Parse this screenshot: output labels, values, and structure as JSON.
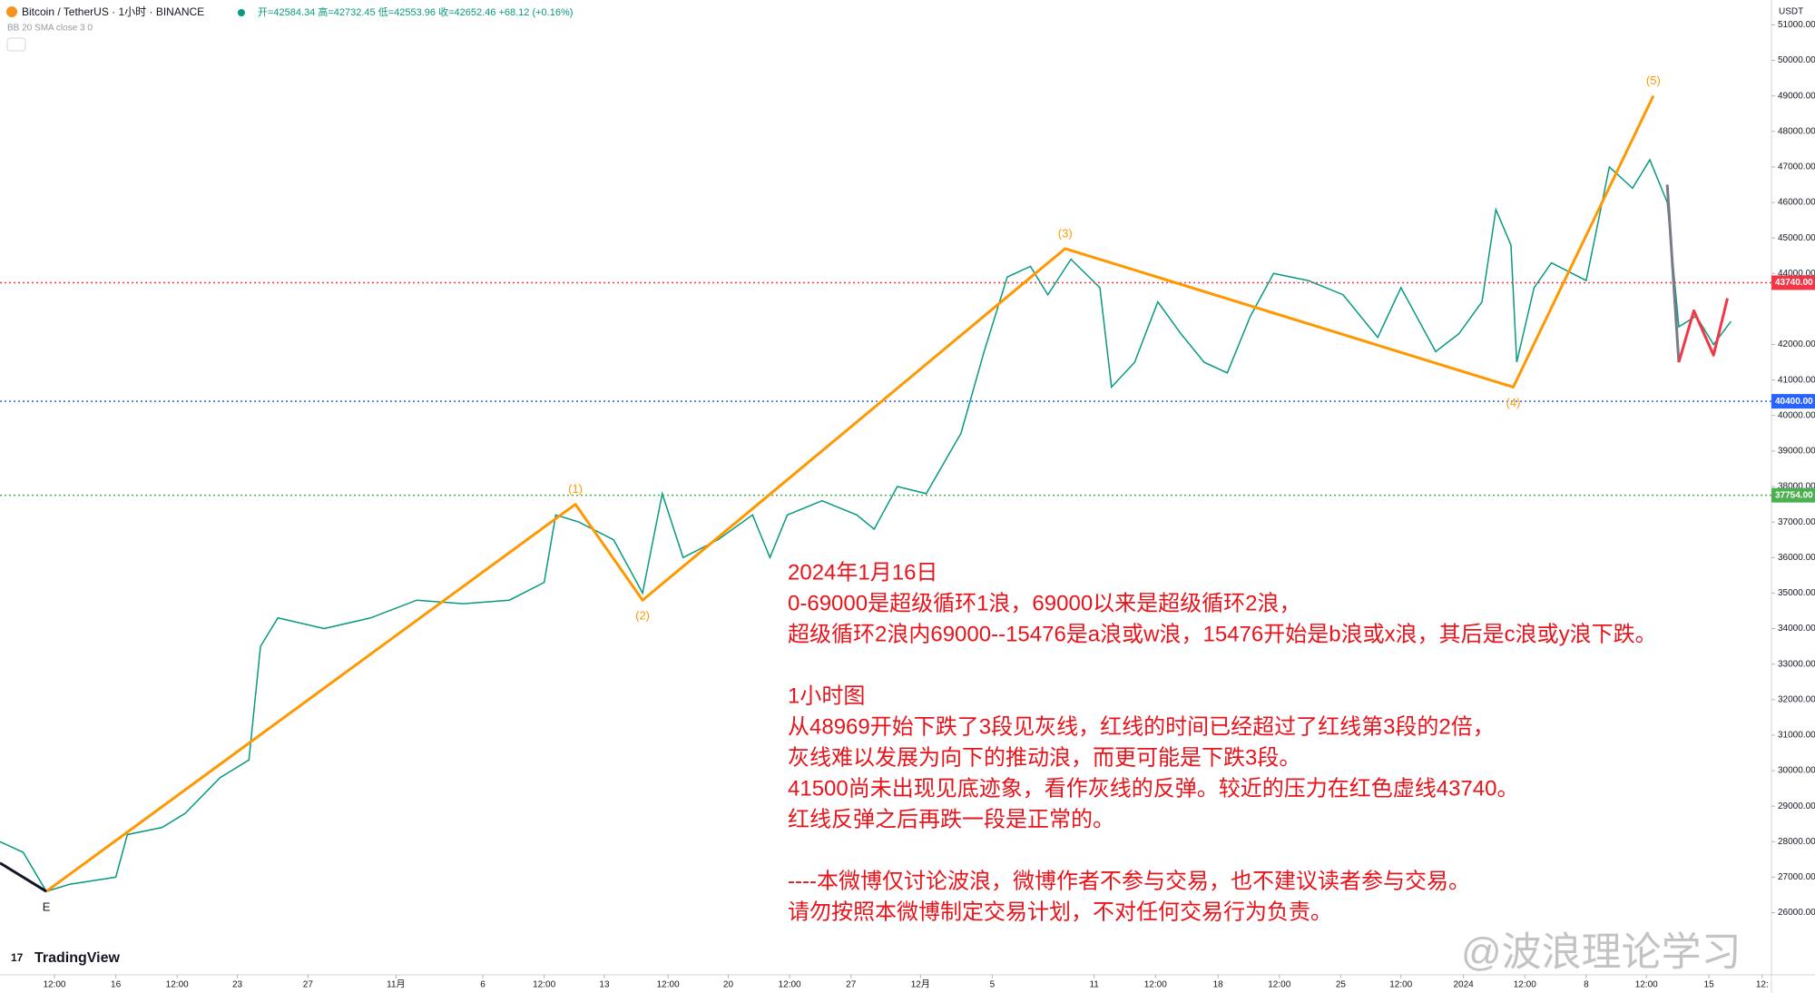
{
  "header": {
    "symbol": "Bitcoin / TetherUS · 1小时 · BINANCE",
    "ohlc": "开=42584.34 高=42732.45 低=42553.96 收=42652.46 +68.12 (+0.16%)",
    "indicator": "BB 20 SMA close 3 0",
    "logo": "TradingView",
    "watermark": "@波浪理论学习"
  },
  "chart_data": {
    "type": "line",
    "color": "#089981",
    "y_unit": "USDT",
    "x": [
      0,
      20,
      40,
      60,
      100,
      110,
      140,
      160,
      190,
      215,
      225,
      240,
      280,
      320,
      360,
      400,
      440,
      470,
      480,
      500,
      530,
      555,
      572,
      590,
      620,
      650,
      665,
      680,
      710,
      740,
      755,
      775,
      800,
      830,
      850,
      870,
      890,
      905,
      925,
      950,
      960,
      980,
      1000,
      1020,
      1040,
      1060,
      1080,
      1100,
      1130,
      1160,
      1190,
      1210,
      1240,
      1260,
      1280,
      1292,
      1305,
      1310,
      1325,
      1340,
      1370,
      1390,
      1410,
      1425,
      1440,
      1450,
      1465,
      1480,
      1495
    ],
    "values": [
      28000,
      27700,
      26600,
      26800,
      27000,
      28200,
      28400,
      28800,
      29800,
      30300,
      33500,
      34300,
      34000,
      34300,
      34800,
      34700,
      34800,
      35300,
      37200,
      37000,
      36500,
      35000,
      37800,
      36000,
      36500,
      37200,
      36000,
      37200,
      37600,
      37200,
      36800,
      38000,
      37800,
      39500,
      41800,
      43900,
      44200,
      43400,
      44400,
      43600,
      40800,
      41500,
      43200,
      42300,
      41500,
      41200,
      42800,
      44000,
      43800,
      43400,
      42200,
      43600,
      41800,
      42300,
      43200,
      45800,
      44800,
      41500,
      43600,
      44300,
      43800,
      47000,
      46400,
      47200,
      46000,
      42500,
      42800,
      42000,
      42650
    ],
    "xlim": [
      0,
      1530
    ],
    "ylim": [
      24250,
      51700
    ],
    "xticks": [
      {
        "value": 47,
        "label": "12:00"
      },
      {
        "value": 100,
        "label": "16"
      },
      {
        "value": 153,
        "label": "12:00"
      },
      {
        "value": 205,
        "label": "23"
      },
      {
        "value": 266,
        "label": "27"
      },
      {
        "value": 342,
        "label": "11月"
      },
      {
        "value": 417,
        "label": "6"
      },
      {
        "value": 470,
        "label": "12:00"
      },
      {
        "value": 522,
        "label": "13"
      },
      {
        "value": 577,
        "label": "12:00"
      },
      {
        "value": 629,
        "label": "20"
      },
      {
        "value": 682,
        "label": "12:00"
      },
      {
        "value": 735,
        "label": "27"
      },
      {
        "value": 795,
        "label": "12月"
      },
      {
        "value": 857,
        "label": "5"
      },
      {
        "value": 945,
        "label": "11"
      },
      {
        "value": 998,
        "label": "12:00"
      },
      {
        "value": 1052,
        "label": "18"
      },
      {
        "value": 1105,
        "label": "12:00"
      },
      {
        "value": 1158,
        "label": "25"
      },
      {
        "value": 1210,
        "label": "12:00"
      },
      {
        "value": 1264,
        "label": "2024"
      },
      {
        "value": 1317,
        "label": "12:00"
      },
      {
        "value": 1370,
        "label": "8"
      },
      {
        "value": 1422,
        "label": "12:00"
      },
      {
        "value": 1476,
        "label": "15"
      },
      {
        "value": 1522,
        "label": "12:"
      }
    ],
    "yticks": [
      {
        "value": 26000,
        "label": "26000.00"
      },
      {
        "value": 27000,
        "label": "27000.00"
      },
      {
        "value": 28000,
        "label": "28000.00"
      },
      {
        "value": 29000,
        "label": "29000.00"
      },
      {
        "value": 30000,
        "label": "30000.00"
      },
      {
        "value": 31000,
        "label": "31000.00"
      },
      {
        "value": 32000,
        "label": "32000.00"
      },
      {
        "value": 33000,
        "label": "33000.00"
      },
      {
        "value": 34000,
        "label": "34000.00"
      },
      {
        "value": 35000,
        "label": "35000.00"
      },
      {
        "value": 36000,
        "label": "36000.00"
      },
      {
        "value": 37000,
        "label": "37000.00"
      },
      {
        "value": 38000,
        "label": "38000.00"
      },
      {
        "value": 39000,
        "label": "39000.00"
      },
      {
        "value": 40000,
        "label": "40000.00"
      },
      {
        "value": 41000,
        "label": "41000.00"
      },
      {
        "value": 42000,
        "label": "42000.00"
      },
      {
        "value": 44000,
        "label": "44000.00"
      },
      {
        "value": 45000,
        "label": "45000.00"
      },
      {
        "value": 46000,
        "label": "46000.00"
      },
      {
        "value": 47000,
        "label": "47000.00"
      },
      {
        "value": 48000,
        "label": "48000.00"
      },
      {
        "value": 49000,
        "label": "49000.00"
      },
      {
        "value": 50000,
        "label": "50000.00"
      },
      {
        "value": 51000,
        "label": "51000.00"
      }
    ],
    "grid": false,
    "levels": [
      {
        "value": 43740,
        "label": "43740.00",
        "color": "#f23645"
      },
      {
        "value": 40400,
        "label": "40400.00",
        "color": "#2962ff"
      },
      {
        "value": 37754,
        "label": "37754.00",
        "color": "#4caf50"
      }
    ],
    "wave_lines": [
      {
        "color": "#ff9800",
        "x": [
          40,
          497,
          555,
          920,
          1307,
          1428
        ],
        "values": [
          26600,
          37500,
          34800,
          44700,
          40800,
          49000
        ],
        "labels": [
          "E",
          "(1)",
          "(2)",
          "(3)",
          "(4)",
          "(5)"
        ]
      },
      {
        "color": "#131722",
        "x": [
          0,
          40
        ],
        "values": [
          27400,
          26600
        ]
      },
      {
        "color": "#787b86",
        "x": [
          1440,
          1450
        ],
        "values": [
          46500,
          41500
        ]
      },
      {
        "color": "#f23645",
        "x": [
          1450,
          1463,
          1480,
          1492
        ],
        "values": [
          41500,
          42950,
          41700,
          43300
        ]
      }
    ],
    "annotation": {
      "color": "#e8141b",
      "paragraphs": [
        [
          "2024年1月16日",
          "0-69000是超级循环1浪，69000以来是超级循环2浪，",
          "超级循环2浪内69000--15476是a浪或w浪，15476开始是b浪或x浪，其后是c浪或y浪下跌。"
        ],
        [
          "1小时图",
          "从48969开始下跌了3段见灰线，红线的时间已经超过了红线第3段的2倍，",
          "灰线难以发展为向下的推动浪，而更可能是下跌3段。",
          "41500尚未出现见底迹象，看作灰线的反弹。较近的压力在红色虚线43740。",
          "红线反弹之后再跌一段是正常的。"
        ],
        [
          "----本微博仅讨论波浪，微博作者不参与交易，也不建议读者参与交易。",
          "请勿按照本微博制定交易计划，不对任何交易行为负责。"
        ]
      ]
    }
  }
}
